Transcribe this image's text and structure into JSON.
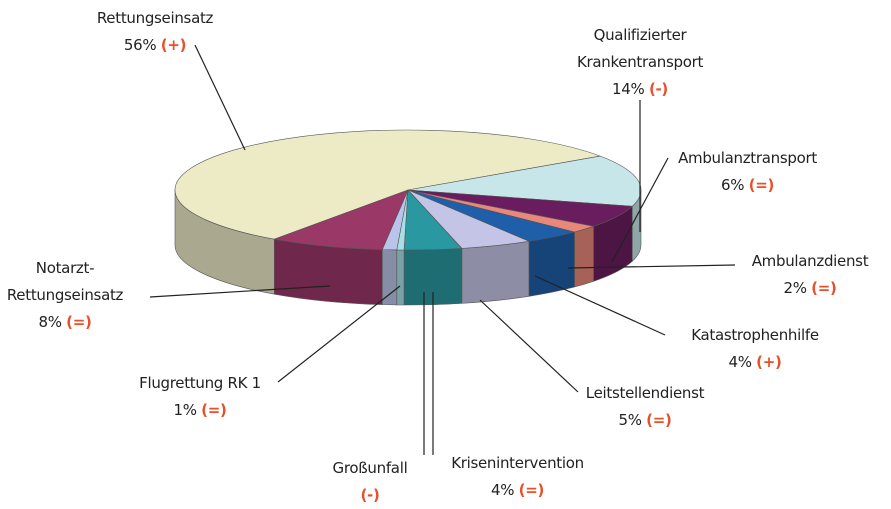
{
  "chart_data": {
    "type": "pie3d",
    "categories": [
      "Rettungseinsatz",
      "Qualifizierter Krankentransport",
      "Ambulanztransport",
      "Ambulanzdienst",
      "Katastrophenhilfe",
      "Leitstellendienst",
      "Krisenintervention",
      "Großunfall",
      "Flugrettung RK 1",
      "Notarzt-Rettungseinsatz"
    ],
    "values": [
      56,
      14,
      6,
      2,
      4,
      5,
      4,
      0.5,
      1,
      8
    ],
    "value_labels": [
      "56%",
      "14%",
      "6%",
      "2%",
      "4%",
      "5%",
      "4%",
      null,
      "1%",
      "8%"
    ],
    "trends": [
      "(+)",
      "(-)",
      "(=)",
      "(=)",
      "(+)",
      "(=)",
      "(=)",
      "(-)",
      "(=)",
      "(=)"
    ],
    "colors": [
      "#ecebc6",
      "#c6e6ea",
      "#6a1d5e",
      "#e8887a",
      "#1f5ea8",
      "#c4c4e6",
      "#2a98a0",
      "#a8dfe6",
      "#b9c4e8",
      "#9a3868"
    ]
  }
}
